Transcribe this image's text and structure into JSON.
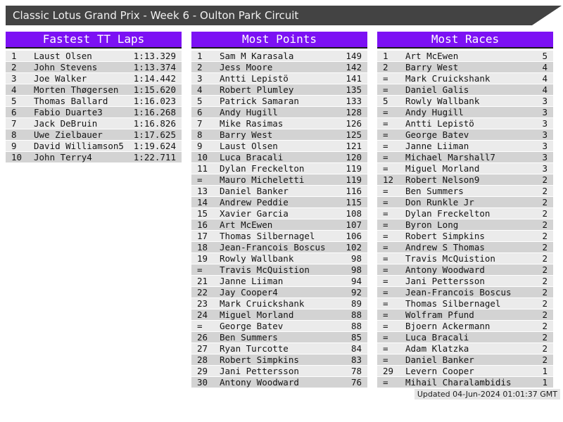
{
  "page": {
    "title": "Classic Lotus Grand Prix - Week 6 - Oulton Park Circuit",
    "updated": "Updated 04-Jun-2024 01:01:37 GMT"
  },
  "colors": {
    "accent_purple": "#7C11F4",
    "title_bar_gray": "#434343",
    "row_light": "#EBEBEB",
    "row_dark": "#D3D3D3",
    "header_underline": "#1A1A1A",
    "footer_bg": "#E5E5E5"
  },
  "boards": [
    {
      "title": "Fastest TT Laps",
      "rows": [
        {
          "rank": "1",
          "name": "Laust Olsen",
          "value": "1:13.329"
        },
        {
          "rank": "2",
          "name": "John Stevens",
          "value": "1:13.374"
        },
        {
          "rank": "3",
          "name": "Joe Walker",
          "value": "1:14.442"
        },
        {
          "rank": "4",
          "name": "Morten Thøgersen",
          "value": "1:15.620"
        },
        {
          "rank": "5",
          "name": "Thomas Ballard",
          "value": "1:16.023"
        },
        {
          "rank": "6",
          "name": "Fabio Duarte3",
          "value": "1:16.268"
        },
        {
          "rank": "7",
          "name": "Jack DeBruin",
          "value": "1:16.826"
        },
        {
          "rank": "8",
          "name": "Uwe Zielbauer",
          "value": "1:17.625"
        },
        {
          "rank": "9",
          "name": "David Williamson5",
          "value": "1:19.624"
        },
        {
          "rank": "10",
          "name": "John Terry4",
          "value": "1:22.711"
        }
      ]
    },
    {
      "title": "Most Points",
      "rows": [
        {
          "rank": "1",
          "name": "Sam M Karasala",
          "value": "149"
        },
        {
          "rank": "2",
          "name": "Jess Moore",
          "value": "142"
        },
        {
          "rank": "3",
          "name": "Antti Lepistö",
          "value": "141"
        },
        {
          "rank": "4",
          "name": "Robert Plumley",
          "value": "135"
        },
        {
          "rank": "5",
          "name": "Patrick Samaran",
          "value": "133"
        },
        {
          "rank": "6",
          "name": "Andy Hugill",
          "value": "128"
        },
        {
          "rank": "7",
          "name": "Mike Rasimas",
          "value": "126"
        },
        {
          "rank": "8",
          "name": "Barry West",
          "value": "125"
        },
        {
          "rank": "9",
          "name": "Laust Olsen",
          "value": "121"
        },
        {
          "rank": "10",
          "name": "Luca Bracali",
          "value": "120"
        },
        {
          "rank": "11",
          "name": "Dylan Freckelton",
          "value": "119"
        },
        {
          "rank": "=",
          "name": "Mauro Micheletti",
          "value": "119"
        },
        {
          "rank": "13",
          "name": "Daniel Banker",
          "value": "116"
        },
        {
          "rank": "14",
          "name": "Andrew Peddie",
          "value": "115"
        },
        {
          "rank": "15",
          "name": "Xavier Garcia",
          "value": "108"
        },
        {
          "rank": "16",
          "name": "Art McEwen",
          "value": "107"
        },
        {
          "rank": "17",
          "name": "Thomas Silbernagel",
          "value": "106"
        },
        {
          "rank": "18",
          "name": "Jean-Francois Boscus",
          "value": "102"
        },
        {
          "rank": "19",
          "name": "Rowly Wallbank",
          "value": "98"
        },
        {
          "rank": "=",
          "name": "Travis McQuistion",
          "value": "98"
        },
        {
          "rank": "21",
          "name": "Janne Liiman",
          "value": "94"
        },
        {
          "rank": "22",
          "name": "Jay Cooper4",
          "value": "92"
        },
        {
          "rank": "23",
          "name": "Mark Cruickshank",
          "value": "89"
        },
        {
          "rank": "24",
          "name": "Miguel Morland",
          "value": "88"
        },
        {
          "rank": "=",
          "name": "George Batev",
          "value": "88"
        },
        {
          "rank": "26",
          "name": "Ben Summers",
          "value": "85"
        },
        {
          "rank": "27",
          "name": "Ryan Turcotte",
          "value": "84"
        },
        {
          "rank": "28",
          "name": "Robert Simpkins",
          "value": "83"
        },
        {
          "rank": "29",
          "name": "Jani Pettersson",
          "value": "78"
        },
        {
          "rank": "30",
          "name": "Antony Woodward",
          "value": "76"
        }
      ]
    },
    {
      "title": "Most Races",
      "rows": [
        {
          "rank": "1",
          "name": "Art McEwen",
          "value": "5"
        },
        {
          "rank": "2",
          "name": "Barry West",
          "value": "4"
        },
        {
          "rank": "=",
          "name": "Mark Cruickshank",
          "value": "4"
        },
        {
          "rank": "=",
          "name": "Daniel Galis",
          "value": "4"
        },
        {
          "rank": "5",
          "name": "Rowly Wallbank",
          "value": "3"
        },
        {
          "rank": "=",
          "name": "Andy Hugill",
          "value": "3"
        },
        {
          "rank": "=",
          "name": "Antti Lepistö",
          "value": "3"
        },
        {
          "rank": "=",
          "name": "George Batev",
          "value": "3"
        },
        {
          "rank": "=",
          "name": "Janne Liiman",
          "value": "3"
        },
        {
          "rank": "=",
          "name": "Michael Marshall7",
          "value": "3"
        },
        {
          "rank": "=",
          "name": "Miguel Morland",
          "value": "3"
        },
        {
          "rank": "12",
          "name": "Robert Nelson9",
          "value": "2"
        },
        {
          "rank": "=",
          "name": "Ben Summers",
          "value": "2"
        },
        {
          "rank": "=",
          "name": "Don Runkle Jr",
          "value": "2"
        },
        {
          "rank": "=",
          "name": "Dylan Freckelton",
          "value": "2"
        },
        {
          "rank": "=",
          "name": "Byron Long",
          "value": "2"
        },
        {
          "rank": "=",
          "name": "Robert Simpkins",
          "value": "2"
        },
        {
          "rank": "=",
          "name": "Andrew S Thomas",
          "value": "2"
        },
        {
          "rank": "=",
          "name": "Travis McQuistion",
          "value": "2"
        },
        {
          "rank": "=",
          "name": "Antony Woodward",
          "value": "2"
        },
        {
          "rank": "=",
          "name": "Jani Pettersson",
          "value": "2"
        },
        {
          "rank": "=",
          "name": "Jean-Francois Boscus",
          "value": "2"
        },
        {
          "rank": "=",
          "name": "Thomas Silbernagel",
          "value": "2"
        },
        {
          "rank": "=",
          "name": "Wolfram Pfund",
          "value": "2"
        },
        {
          "rank": "=",
          "name": "Bjoern Ackermann",
          "value": "2"
        },
        {
          "rank": "=",
          "name": "Luca Bracali",
          "value": "2"
        },
        {
          "rank": "=",
          "name": "Adam Klatzka",
          "value": "2"
        },
        {
          "rank": "=",
          "name": "Daniel Banker",
          "value": "2"
        },
        {
          "rank": "29",
          "name": "Levern Cooper",
          "value": "1"
        },
        {
          "rank": "=",
          "name": "Mihail Charalambidis",
          "value": "1"
        }
      ]
    }
  ]
}
